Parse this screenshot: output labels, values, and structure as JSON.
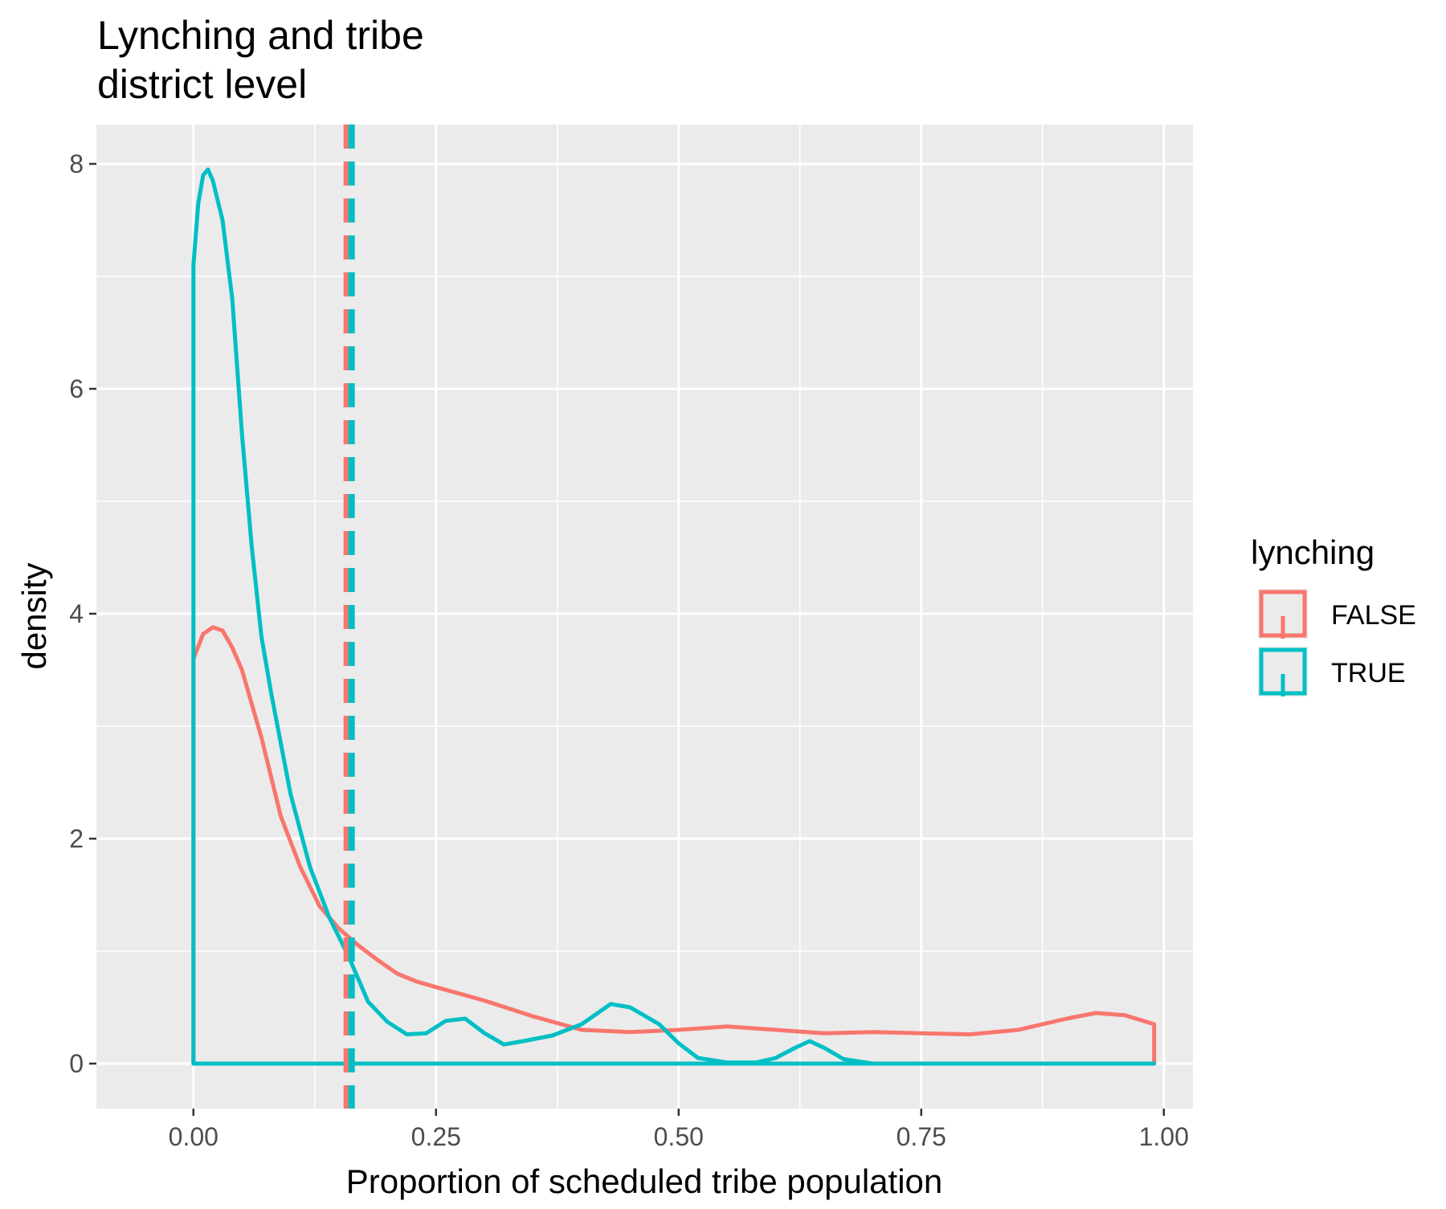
{
  "chart_data": {
    "type": "area",
    "title": "Lynching and tribe\ndistrict level",
    "title_lines": [
      "Lynching and tribe",
      "district level"
    ],
    "xlabel": "Proportion of scheduled tribe population",
    "ylabel": "density",
    "xlim": [
      -0.1,
      1.03
    ],
    "ylim": [
      -0.4,
      8.35
    ],
    "x_ticks": [
      0.0,
      0.25,
      0.5,
      0.75,
      1.0
    ],
    "x_tick_labels": [
      "0.00",
      "0.25",
      "0.50",
      "0.75",
      "1.00"
    ],
    "y_ticks": [
      0,
      2,
      4,
      6,
      8
    ],
    "y_tick_labels": [
      "0",
      "2",
      "4",
      "6",
      "8"
    ],
    "grid": true,
    "legend": {
      "title": "lynching",
      "position": "right",
      "entries": [
        "FALSE",
        "TRUE"
      ]
    },
    "series": [
      {
        "name": "FALSE",
        "color": "#F8766D",
        "mean": 0.158,
        "x": [
          0.0,
          0.01,
          0.02,
          0.03,
          0.04,
          0.05,
          0.07,
          0.09,
          0.11,
          0.13,
          0.15,
          0.17,
          0.19,
          0.21,
          0.23,
          0.25,
          0.3,
          0.35,
          0.4,
          0.45,
          0.5,
          0.55,
          0.6,
          0.65,
          0.7,
          0.75,
          0.8,
          0.85,
          0.9,
          0.93,
          0.96,
          0.99
        ],
        "y": [
          3.6,
          3.82,
          3.88,
          3.85,
          3.7,
          3.5,
          2.9,
          2.2,
          1.75,
          1.4,
          1.2,
          1.05,
          0.92,
          0.8,
          0.73,
          0.68,
          0.56,
          0.42,
          0.3,
          0.28,
          0.3,
          0.33,
          0.3,
          0.27,
          0.28,
          0.27,
          0.26,
          0.3,
          0.4,
          0.45,
          0.43,
          0.35
        ]
      },
      {
        "name": "TRUE",
        "color": "#00BFC4",
        "mean": 0.163,
        "x": [
          0.0,
          0.005,
          0.01,
          0.015,
          0.02,
          0.03,
          0.04,
          0.05,
          0.06,
          0.07,
          0.08,
          0.1,
          0.12,
          0.14,
          0.16,
          0.18,
          0.2,
          0.22,
          0.24,
          0.26,
          0.28,
          0.3,
          0.32,
          0.34,
          0.37,
          0.4,
          0.43,
          0.45,
          0.48,
          0.5,
          0.52,
          0.55,
          0.58,
          0.6,
          0.62,
          0.635,
          0.65,
          0.67,
          0.7,
          0.8,
          0.9,
          0.99
        ],
        "y": [
          7.1,
          7.65,
          7.9,
          7.95,
          7.85,
          7.5,
          6.8,
          5.6,
          4.6,
          3.8,
          3.3,
          2.4,
          1.75,
          1.3,
          0.95,
          0.55,
          0.37,
          0.26,
          0.27,
          0.38,
          0.4,
          0.27,
          0.17,
          0.2,
          0.25,
          0.35,
          0.53,
          0.5,
          0.35,
          0.18,
          0.05,
          0.01,
          0.01,
          0.05,
          0.14,
          0.2,
          0.14,
          0.04,
          0.0,
          0.0,
          0.0,
          0.0
        ]
      }
    ]
  }
}
